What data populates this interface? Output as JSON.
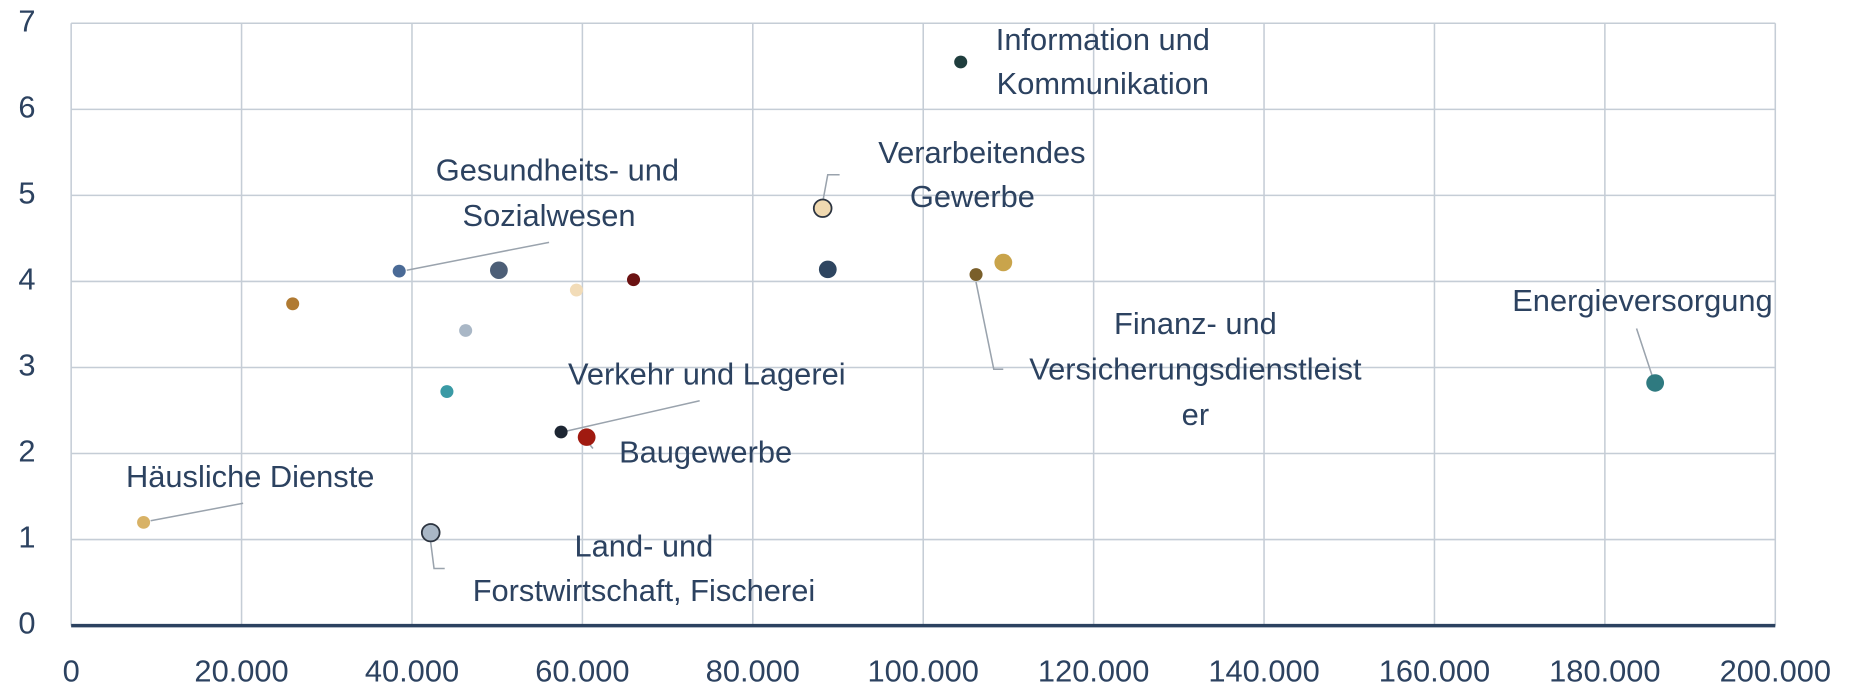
{
  "chart_data": {
    "type": "bubble",
    "x": [
      104400,
      88200,
      38500,
      50200,
      59300,
      66000,
      88800,
      106200,
      109400,
      26000,
      46300,
      44100,
      57500,
      60500,
      185900,
      8500,
      42200
    ],
    "values": [
      6.55,
      4.85,
      4.12,
      4.13,
      3.9,
      4.02,
      4.14,
      4.08,
      4.22,
      3.74,
      3.43,
      2.72,
      2.25,
      2.19,
      2.82,
      1.2,
      1.08
    ],
    "sizes": [
      1,
      2,
      1,
      2,
      1,
      1,
      2,
      1,
      2,
      1,
      1,
      1,
      1,
      2,
      2,
      1,
      2
    ],
    "colors": [
      "#1f3d3d",
      "#f0d9b0",
      "#4a6a96",
      "#4d5f77",
      "#f2dcb8",
      "#6b1212",
      "#2e4560",
      "#7a5f2a",
      "#c9a44b",
      "#b07a32",
      "#a9b7c6",
      "#3a9aa5",
      "#1d2633",
      "#a01a10",
      "#2f7a80",
      "#d8b266",
      "#a9b7c6"
    ],
    "labels": [
      [
        "Information und",
        "Kommunikation"
      ],
      [
        "Verarbeitendes",
        "Gewerbe"
      ],
      [
        "Gesundheits- und",
        "Sozialwesen"
      ],
      null,
      null,
      null,
      null,
      [
        "Finanz- und",
        "Versicherungsdienstleist",
        "er"
      ],
      null,
      null,
      null,
      null,
      [
        "Verkehr und Lagerei"
      ],
      [
        "Baugewerbe"
      ],
      [
        "Energieversorgung"
      ],
      [
        "Häusliche Dienste"
      ],
      [
        "Land- und",
        "Forstwirtschaft, Fischerei"
      ]
    ],
    "xlim": [
      0,
      200000
    ],
    "xticks": [
      0,
      {
        "value": 20000,
        "label": "20.000"
      },
      {
        "value": 40000,
        "label": "40.000"
      },
      {
        "value": 60000,
        "label": "60.000"
      },
      {
        "value": 80000,
        "label": "80.000"
      },
      {
        "value": 100000,
        "label": "100.000"
      },
      {
        "value": 120000,
        "label": "120.000"
      },
      {
        "value": 140000,
        "label": "140.000"
      },
      {
        "value": 160000,
        "label": "160.000"
      },
      {
        "value": 180000,
        "label": "180.000"
      },
      {
        "value": 200000,
        "label": "200.000"
      }
    ],
    "ylim": [
      0,
      7
    ],
    "yticks": [
      0,
      1,
      2,
      3,
      4,
      5,
      6,
      7
    ],
    "grid": true
  }
}
